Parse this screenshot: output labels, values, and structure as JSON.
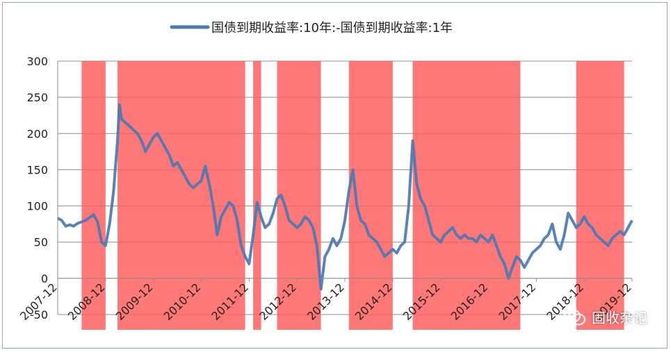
{
  "chart_data": {
    "type": "line",
    "title": "",
    "legend": {
      "label": "国债到期收益率:10年:-国债到期收益率:1年",
      "position": "top",
      "color": "#4a78b3"
    },
    "ylim": [
      -50,
      300
    ],
    "yticks": [
      "300",
      "250",
      "200",
      "150",
      "100",
      "50",
      "0",
      "-50"
    ],
    "ytick_values": [
      300,
      250,
      200,
      150,
      100,
      50,
      0,
      -50
    ],
    "xlim": [
      "2007-12",
      "2019-12"
    ],
    "xticks": [
      "2007-12",
      "2008-12",
      "2009-12",
      "2010-12",
      "2011-12",
      "2012-12",
      "2013-12",
      "2014-12",
      "2015-12",
      "2016-12",
      "2017-12",
      "2018-12",
      "2019-12"
    ],
    "grid": true,
    "series": [
      {
        "name": "国债到期收益率:10年:-国债到期收益率:1年",
        "color": "#4a78b3",
        "points": [
          [
            "2007-12",
            83
          ],
          [
            "2008-01",
            80
          ],
          [
            "2008-02",
            72
          ],
          [
            "2008-03",
            74
          ],
          [
            "2008-04",
            72
          ],
          [
            "2008-05",
            76
          ],
          [
            "2008-06",
            78
          ],
          [
            "2008-07",
            80
          ],
          [
            "2008-08",
            84
          ],
          [
            "2008-09",
            88
          ],
          [
            "2008-10",
            78
          ],
          [
            "2008-11",
            50
          ],
          [
            "2008-12",
            45
          ],
          [
            "2009-01",
            75
          ],
          [
            "2009-02",
            120
          ],
          [
            "2009-03",
            190
          ],
          [
            "2009-03-15",
            240
          ],
          [
            "2009-04",
            220
          ],
          [
            "2009-05",
            215
          ],
          [
            "2009-06",
            210
          ],
          [
            "2009-07",
            205
          ],
          [
            "2009-08",
            200
          ],
          [
            "2009-09",
            190
          ],
          [
            "2009-10",
            175
          ],
          [
            "2009-11",
            185
          ],
          [
            "2009-12",
            195
          ],
          [
            "2010-01",
            200
          ],
          [
            "2010-02",
            190
          ],
          [
            "2010-03",
            180
          ],
          [
            "2010-04",
            170
          ],
          [
            "2010-05",
            155
          ],
          [
            "2010-06",
            160
          ],
          [
            "2010-07",
            150
          ],
          [
            "2010-08",
            140
          ],
          [
            "2010-09",
            130
          ],
          [
            "2010-10",
            125
          ],
          [
            "2010-11",
            130
          ],
          [
            "2010-12",
            135
          ],
          [
            "2011-01",
            155
          ],
          [
            "2011-02",
            130
          ],
          [
            "2011-03",
            100
          ],
          [
            "2011-04",
            60
          ],
          [
            "2011-05",
            85
          ],
          [
            "2011-06",
            95
          ],
          [
            "2011-07",
            105
          ],
          [
            "2011-08",
            100
          ],
          [
            "2011-09",
            80
          ],
          [
            "2011-10",
            45
          ],
          [
            "2011-11",
            30
          ],
          [
            "2011-12",
            20
          ],
          [
            "2012-01",
            60
          ],
          [
            "2012-02",
            105
          ],
          [
            "2012-03",
            85
          ],
          [
            "2012-04",
            70
          ],
          [
            "2012-05",
            75
          ],
          [
            "2012-06",
            90
          ],
          [
            "2012-07",
            110
          ],
          [
            "2012-08",
            115
          ],
          [
            "2012-09",
            100
          ],
          [
            "2012-10",
            80
          ],
          [
            "2012-11",
            75
          ],
          [
            "2012-12",
            70
          ],
          [
            "2013-01",
            75
          ],
          [
            "2013-02",
            85
          ],
          [
            "2013-03",
            80
          ],
          [
            "2013-04",
            70
          ],
          [
            "2013-05",
            45
          ],
          [
            "2013-06",
            -15
          ],
          [
            "2013-07",
            30
          ],
          [
            "2013-08",
            40
          ],
          [
            "2013-09",
            55
          ],
          [
            "2013-10",
            45
          ],
          [
            "2013-11",
            55
          ],
          [
            "2013-12",
            80
          ],
          [
            "2014-01",
            120
          ],
          [
            "2014-02",
            150
          ],
          [
            "2014-03",
            100
          ],
          [
            "2014-04",
            80
          ],
          [
            "2014-05",
            75
          ],
          [
            "2014-06",
            60
          ],
          [
            "2014-07",
            55
          ],
          [
            "2014-08",
            50
          ],
          [
            "2014-09",
            40
          ],
          [
            "2014-10",
            30
          ],
          [
            "2014-11",
            35
          ],
          [
            "2014-12",
            40
          ],
          [
            "2015-01",
            35
          ],
          [
            "2015-02",
            45
          ],
          [
            "2015-03",
            50
          ],
          [
            "2015-04",
            100
          ],
          [
            "2015-05",
            190
          ],
          [
            "2015-06",
            130
          ],
          [
            "2015-07",
            110
          ],
          [
            "2015-08",
            100
          ],
          [
            "2015-09",
            80
          ],
          [
            "2015-10",
            60
          ],
          [
            "2015-11",
            55
          ],
          [
            "2015-12",
            50
          ],
          [
            "2016-01",
            60
          ],
          [
            "2016-02",
            65
          ],
          [
            "2016-03",
            70
          ],
          [
            "2016-04",
            60
          ],
          [
            "2016-05",
            55
          ],
          [
            "2016-06",
            60
          ],
          [
            "2016-07",
            55
          ],
          [
            "2016-08",
            55
          ],
          [
            "2016-09",
            50
          ],
          [
            "2016-10",
            60
          ],
          [
            "2016-11",
            55
          ],
          [
            "2016-12",
            50
          ],
          [
            "2017-01",
            60
          ],
          [
            "2017-02",
            45
          ],
          [
            "2017-03",
            30
          ],
          [
            "2017-04",
            20
          ],
          [
            "2017-05",
            0
          ],
          [
            "2017-06",
            15
          ],
          [
            "2017-07",
            30
          ],
          [
            "2017-08",
            25
          ],
          [
            "2017-09",
            15
          ],
          [
            "2017-10",
            25
          ],
          [
            "2017-11",
            35
          ],
          [
            "2017-12",
            40
          ],
          [
            "2018-01",
            45
          ],
          [
            "2018-02",
            55
          ],
          [
            "2018-03",
            60
          ],
          [
            "2018-04",
            75
          ],
          [
            "2018-05",
            50
          ],
          [
            "2018-06",
            40
          ],
          [
            "2018-07",
            60
          ],
          [
            "2018-08",
            90
          ],
          [
            "2018-09",
            80
          ],
          [
            "2018-10",
            70
          ],
          [
            "2018-11",
            75
          ],
          [
            "2018-12",
            85
          ],
          [
            "2019-01",
            75
          ],
          [
            "2019-02",
            70
          ],
          [
            "2019-03",
            60
          ],
          [
            "2019-04",
            55
          ],
          [
            "2019-05",
            50
          ],
          [
            "2019-06",
            45
          ],
          [
            "2019-07",
            55
          ],
          [
            "2019-08",
            60
          ],
          [
            "2019-09",
            65
          ],
          [
            "2019-10",
            60
          ],
          [
            "2019-11",
            70
          ],
          [
            "2019-12",
            80
          ]
        ]
      }
    ],
    "shaded_periods": {
      "color": "#ff5a5a",
      "opacity": 0.82,
      "ranges": [
        [
          "2008-06",
          "2008-12"
        ],
        [
          "2009-03",
          "2011-11"
        ],
        [
          "2012-01",
          "2012-03"
        ],
        [
          "2012-07",
          "2013-06"
        ],
        [
          "2014-01",
          "2014-12"
        ],
        [
          "2015-05",
          "2017-08"
        ],
        [
          "2018-10",
          "2019-10"
        ]
      ]
    },
    "watermark": "固收杂记"
  }
}
